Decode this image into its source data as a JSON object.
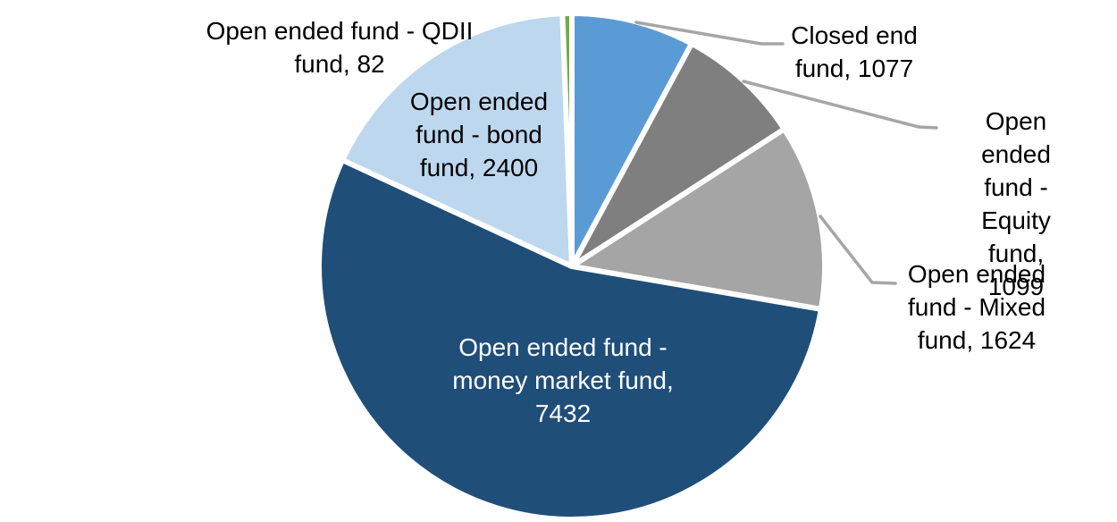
{
  "chart_data": {
    "type": "pie",
    "title": "",
    "legend_position": "none",
    "direction": "clockwise",
    "start_angle_deg": 0,
    "label_format": "category, value",
    "total": 13714,
    "categories": [
      "Closed end fund",
      "Open ended fund - Equity fund",
      "Open ended fund - Mixed fund",
      "Open ended fund - money market fund",
      "Open ended fund - bond fund",
      "Open ended fund - QDII fund"
    ],
    "values": [
      1077,
      1099,
      1624,
      7432,
      2400,
      82
    ],
    "colors": [
      "#5B9BD5",
      "#7F7F7F",
      "#A5A5A5",
      "#1F4E79",
      "#BDD7EE",
      "#70AD47"
    ],
    "separator_color": "#FFFFFF",
    "leader_line_color": "#A6A6A6"
  },
  "labels": {
    "closed_end": {
      "text": "Closed end\nfund, 1077"
    },
    "equity": {
      "text": "Open ended\nfund - Equity\nfund, 1099"
    },
    "mixed": {
      "text": "Open ended\nfund - Mixed\nfund, 1624"
    },
    "money_market": {
      "text": "Open ended fund -\nmoney market fund,\n7432"
    },
    "bond": {
      "text": "Open ended\nfund - bond\nfund, 2400"
    },
    "qdii": {
      "text": "Open ended fund - QDII\nfund, 82"
    }
  }
}
